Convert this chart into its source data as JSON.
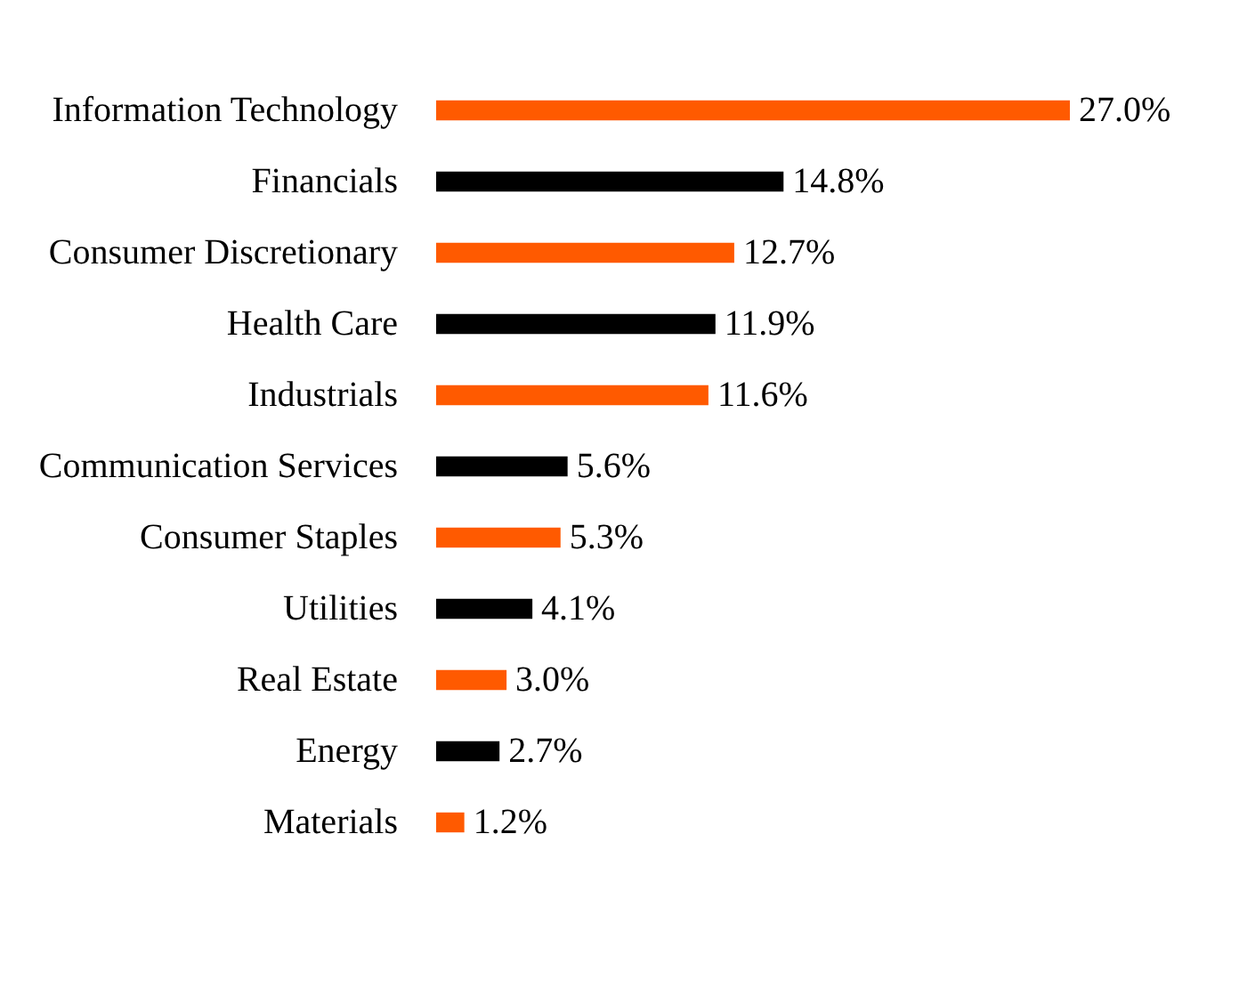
{
  "chart_data": {
    "type": "bar",
    "orientation": "horizontal",
    "categories": [
      "Information Technology",
      "Financials",
      "Consumer Discretionary",
      "Health Care",
      "Industrials",
      "Communication Services",
      "Consumer Staples",
      "Utilities",
      "Real Estate",
      "Energy",
      "Materials"
    ],
    "values": [
      27.0,
      14.8,
      12.7,
      11.9,
      11.6,
      5.6,
      5.3,
      4.1,
      3.0,
      2.7,
      1.2
    ],
    "colors": [
      "#ff5a00",
      "#000000",
      "#ff5a00",
      "#000000",
      "#ff5a00",
      "#000000",
      "#ff5a00",
      "#000000",
      "#ff5a00",
      "#000000",
      "#ff5a00"
    ],
    "value_labels": [
      "27.0%",
      "14.8%",
      "12.7%",
      "11.9%",
      "11.6%",
      "5.6%",
      "5.3%",
      "4.1%",
      "3.0%",
      "2.7%",
      "1.2%"
    ],
    "tick_labels": "y"
  }
}
